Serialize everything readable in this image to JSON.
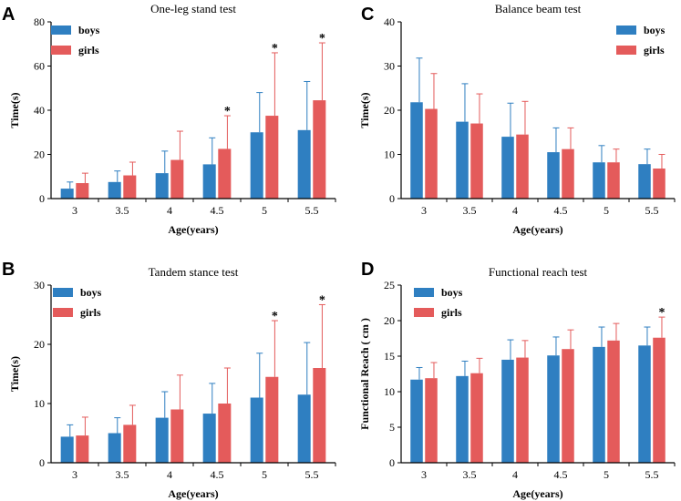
{
  "colors": {
    "boys": "#2f7fc1",
    "girls": "#e45b5b",
    "axis": "#000000"
  },
  "chart_data": [
    {
      "panel": "A",
      "type": "bar",
      "title": "One-leg stand test",
      "xlabel": "Age(years)",
      "ylabel": "Time(s)",
      "ylim": [
        0,
        80
      ],
      "yticks": [
        0,
        20,
        40,
        60,
        80
      ],
      "categories": [
        "3",
        "3.5",
        "4",
        "4.5",
        "5",
        "5.5"
      ],
      "legend_position": "top-left",
      "series": [
        {
          "name": "boys",
          "values": [
            4.5,
            7.5,
            11.5,
            15.5,
            30,
            31
          ],
          "errors": [
            3,
            5,
            10,
            12,
            18,
            22
          ]
        },
        {
          "name": "girls",
          "values": [
            7,
            10.5,
            17.5,
            22.5,
            37.5,
            44.5
          ],
          "errors": [
            4.5,
            6,
            13,
            15,
            28.5,
            26
          ]
        }
      ],
      "significance": [
        {
          "category": "4.5",
          "series": "girls",
          "mark": "*"
        },
        {
          "category": "5",
          "series": "girls",
          "mark": "*"
        },
        {
          "category": "5.5",
          "series": "girls",
          "mark": "*"
        }
      ]
    },
    {
      "panel": "C",
      "type": "bar",
      "title": "Balance beam test",
      "xlabel": "Age(years)",
      "ylabel": "Time(s)",
      "ylim": [
        0,
        40
      ],
      "yticks": [
        0,
        10,
        20,
        30,
        40
      ],
      "categories": [
        "3",
        "3.5",
        "4",
        "4.5",
        "5",
        "5.5"
      ],
      "legend_position": "top-right",
      "series": [
        {
          "name": "boys",
          "values": [
            21.8,
            17.4,
            14,
            10.5,
            8.2,
            7.8
          ],
          "errors": [
            10,
            8.6,
            7.6,
            5.5,
            3.8,
            3.4
          ]
        },
        {
          "name": "girls",
          "values": [
            20.3,
            17,
            14.5,
            11.2,
            8.2,
            6.8
          ],
          "errors": [
            8,
            6.7,
            7.5,
            4.8,
            3,
            3.2
          ]
        }
      ],
      "significance": []
    },
    {
      "panel": "B",
      "type": "bar",
      "title": "Tandem stance test",
      "xlabel": "Age(years)",
      "ylabel": "Time(s)",
      "ylim": [
        0,
        30
      ],
      "yticks": [
        0,
        10,
        20,
        30
      ],
      "categories": [
        "3",
        "3.5",
        "4",
        "4.5",
        "5",
        "5.5"
      ],
      "legend_position": "top-left",
      "series": [
        {
          "name": "boys",
          "values": [
            4.4,
            5,
            7.6,
            8.3,
            11,
            11.5
          ],
          "errors": [
            2,
            2.6,
            4.4,
            5.1,
            7.5,
            8.8
          ]
        },
        {
          "name": "girls",
          "values": [
            4.6,
            6.4,
            9,
            10,
            14.5,
            16
          ],
          "errors": [
            3.1,
            3.3,
            5.8,
            6,
            9.5,
            10.7
          ]
        }
      ],
      "significance": [
        {
          "category": "5",
          "series": "girls",
          "mark": "*"
        },
        {
          "category": "5.5",
          "series": "girls",
          "mark": "*"
        }
      ]
    },
    {
      "panel": "D",
      "type": "bar",
      "title": "Functional reach test",
      "xlabel": "Age(years)",
      "ylabel": "Functional Reach ( cm )",
      "ylim": [
        0,
        25
      ],
      "yticks": [
        0,
        5,
        10,
        15,
        20,
        25
      ],
      "categories": [
        "3",
        "3.5",
        "4",
        "4.5",
        "5",
        "5.5"
      ],
      "legend_position": "top-left",
      "series": [
        {
          "name": "boys",
          "values": [
            11.7,
            12.2,
            14.5,
            15.1,
            16.3,
            16.5
          ],
          "errors": [
            1.7,
            2.1,
            2.8,
            2.6,
            2.8,
            2.6
          ]
        },
        {
          "name": "girls",
          "values": [
            11.9,
            12.6,
            14.8,
            16,
            17.2,
            17.6
          ],
          "errors": [
            2.2,
            2.1,
            2.4,
            2.7,
            2.4,
            2.9
          ]
        }
      ],
      "significance": [
        {
          "category": "5.5",
          "series": "girls",
          "mark": "*"
        }
      ]
    }
  ]
}
